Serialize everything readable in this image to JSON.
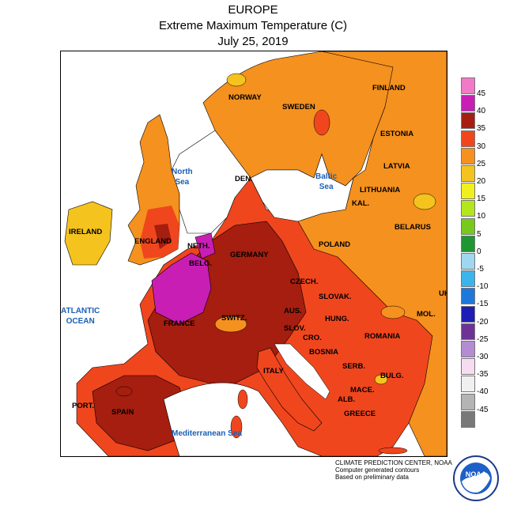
{
  "header": {
    "line1": "EUROPE",
    "line2": "Extreme Maximum Temperature (C)",
    "line3": "July 25, 2019"
  },
  "countries": [
    {
      "name": "NORWAY"
    },
    {
      "name": "SWEDEN"
    },
    {
      "name": "FINLAND"
    },
    {
      "name": "ESTONIA"
    },
    {
      "name": "LATVIA"
    },
    {
      "name": "LITHUANIA"
    },
    {
      "name": "KAL."
    },
    {
      "name": "BELARUS"
    },
    {
      "name": "DEN."
    },
    {
      "name": "IRELAND"
    },
    {
      "name": "ENGLAND"
    },
    {
      "name": "NETH."
    },
    {
      "name": "BELG."
    },
    {
      "name": "GERMANY"
    },
    {
      "name": "POLAND"
    },
    {
      "name": "CZECH."
    },
    {
      "name": "SLOVAK."
    },
    {
      "name": "AUS."
    },
    {
      "name": "HUNG."
    },
    {
      "name": "FRANCE"
    },
    {
      "name": "SWITZ."
    },
    {
      "name": "SLOV."
    },
    {
      "name": "CRO."
    },
    {
      "name": "ROMANIA"
    },
    {
      "name": "BOSNIA"
    },
    {
      "name": "SERB."
    },
    {
      "name": "BULG."
    },
    {
      "name": "MACE."
    },
    {
      "name": "ALB."
    },
    {
      "name": "ITALY"
    },
    {
      "name": "GREECE"
    },
    {
      "name": "PORT."
    },
    {
      "name": "SPAIN"
    },
    {
      "name": "UK"
    },
    {
      "name": "MOL."
    }
  ],
  "seas": {
    "north": "North\nSea",
    "baltic": "Baltic\nSea",
    "atlantic": "ATLANTIC\nOCEAN",
    "med": "Mediterranean Sea"
  },
  "legend": {
    "levels": [
      {
        "label": "45",
        "color": "#f07ac8"
      },
      {
        "label": "40",
        "color": "#c81eb4"
      },
      {
        "label": "35",
        "color": "#a51e0f"
      },
      {
        "label": "30",
        "color": "#f0461e"
      },
      {
        "label": "25",
        "color": "#f5911e"
      },
      {
        "label": "20",
        "color": "#f5c31e"
      },
      {
        "label": "15",
        "color": "#f0f01e"
      },
      {
        "label": "10",
        "color": "#b4e61e"
      },
      {
        "label": "5",
        "color": "#78c81e"
      },
      {
        "label": "0",
        "color": "#1e9632"
      },
      {
        "label": "-5",
        "color": "#a0d7f0"
      },
      {
        "label": "-10",
        "color": "#3cb4eb"
      },
      {
        "label": "-15",
        "color": "#1e78dc"
      },
      {
        "label": "-20",
        "color": "#1e1eb4"
      },
      {
        "label": "-25",
        "color": "#6e3296"
      },
      {
        "label": "-30",
        "color": "#b48cd2"
      },
      {
        "label": "-35",
        "color": "#f5dcf0"
      },
      {
        "label": "-40",
        "color": "#f0f0f0"
      },
      {
        "label": "-45",
        "color": "#b4b4b4"
      },
      {
        "label": "",
        "color": "#787878"
      }
    ]
  },
  "credit": {
    "line1": "CLIMATE PREDICTION CENTER, NOAA",
    "line2": "Computer generated contours",
    "line3": "Based on preliminary data"
  },
  "logo": {
    "text": "NOAA",
    "icon": "noaa-logo-icon"
  }
}
